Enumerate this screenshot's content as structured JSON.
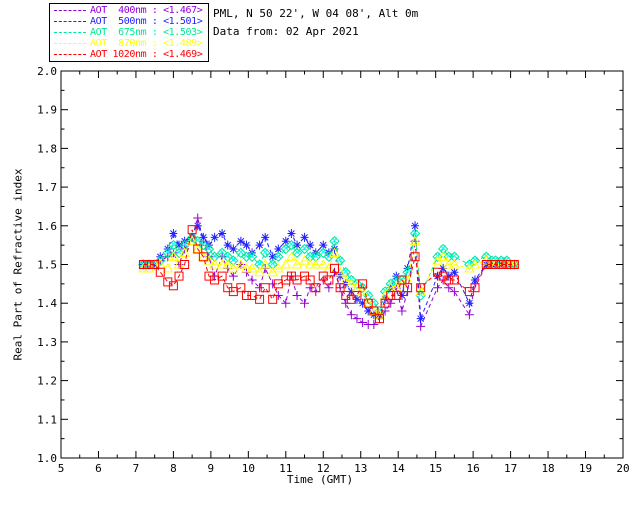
{
  "header": {
    "line1": "PML, N 50 22', W 04 08', Alt 0m",
    "line2": "Data from: 02 Apr 2021"
  },
  "legend": {
    "entries": [
      {
        "label": "AOT  400nm : <1.467>",
        "color": "#9400D3"
      },
      {
        "label": "AOT  500nm : <1.501>",
        "color": "#2222FF"
      },
      {
        "label": "AOT  675nm : <1.503>",
        "color": "#00E896"
      },
      {
        "label": "AOT  870nm : <1.489>",
        "color": "#FFFF00"
      },
      {
        "label": "AOT 1020nm : <1.469>",
        "color": "#FF0000"
      }
    ]
  },
  "chart_data": {
    "type": "line",
    "title": "",
    "xlabel": "Time (GMT)",
    "ylabel": "Real Part of Refractive index",
    "xlim": [
      5,
      20
    ],
    "ylim": [
      1.0,
      2.0
    ],
    "x_ticks": [
      5,
      6,
      7,
      8,
      9,
      10,
      11,
      12,
      13,
      14,
      15,
      16,
      17,
      18,
      19,
      20
    ],
    "y_ticks": [
      "1.0",
      "1.1",
      "1.2",
      "1.3",
      "1.4",
      "1.5",
      "1.6",
      "1.7",
      "1.8",
      "1.9",
      "2.0"
    ],
    "grid": false,
    "line_style": "dashed",
    "legend_position": "top-left",
    "x": [
      7.2,
      7.35,
      7.5,
      7.65,
      7.85,
      8.0,
      8.15,
      8.3,
      8.5,
      8.65,
      8.8,
      8.95,
      9.1,
      9.3,
      9.45,
      9.6,
      9.8,
      9.95,
      10.1,
      10.3,
      10.45,
      10.65,
      10.8,
      11.0,
      11.15,
      11.3,
      11.5,
      11.65,
      11.8,
      12.0,
      12.15,
      12.3,
      12.45,
      12.6,
      12.75,
      12.9,
      13.05,
      13.2,
      13.35,
      13.5,
      13.65,
      13.8,
      13.95,
      14.1,
      14.25,
      14.45,
      14.6,
      15.05,
      15.2,
      15.35,
      15.5,
      15.9,
      16.05,
      16.35,
      16.5,
      16.6,
      16.75,
      16.9,
      17.0,
      17.1
    ],
    "series": [
      {
        "name": "AOT 400nm",
        "mean": 1.467,
        "color": "#9400D3",
        "marker": "plus",
        "values": [
          1.5,
          1.5,
          1.5,
          1.51,
          1.52,
          1.53,
          1.5,
          1.54,
          1.57,
          1.62,
          1.56,
          1.52,
          1.47,
          1.52,
          1.49,
          1.47,
          1.5,
          1.48,
          1.46,
          1.44,
          1.49,
          1.45,
          1.42,
          1.4,
          1.47,
          1.42,
          1.4,
          1.44,
          1.43,
          1.46,
          1.44,
          1.48,
          1.44,
          1.4,
          1.37,
          1.36,
          1.35,
          1.345,
          1.345,
          1.36,
          1.38,
          1.4,
          1.44,
          1.38,
          1.43,
          1.56,
          1.34,
          1.44,
          1.46,
          1.44,
          1.43,
          1.37,
          1.45,
          1.5,
          1.5,
          1.5,
          1.5,
          1.5,
          1.5,
          1.5
        ]
      },
      {
        "name": "AOT 500nm",
        "mean": 1.501,
        "color": "#2222FF",
        "marker": "asterisk",
        "values": [
          1.5,
          1.5,
          1.5,
          1.52,
          1.54,
          1.58,
          1.55,
          1.56,
          1.57,
          1.6,
          1.57,
          1.55,
          1.57,
          1.58,
          1.55,
          1.54,
          1.56,
          1.55,
          1.53,
          1.55,
          1.57,
          1.52,
          1.54,
          1.56,
          1.58,
          1.55,
          1.57,
          1.55,
          1.53,
          1.55,
          1.53,
          1.54,
          1.47,
          1.45,
          1.43,
          1.41,
          1.4,
          1.38,
          1.37,
          1.37,
          1.41,
          1.44,
          1.47,
          1.42,
          1.49,
          1.6,
          1.36,
          1.47,
          1.49,
          1.47,
          1.48,
          1.4,
          1.46,
          1.5,
          1.5,
          1.5,
          1.5,
          1.5,
          1.5,
          1.5
        ]
      },
      {
        "name": "AOT 675nm",
        "mean": 1.503,
        "color": "#00E896",
        "marker": "diamond",
        "accent": "#00FFFF",
        "values": [
          1.5,
          1.5,
          1.5,
          1.51,
          1.53,
          1.55,
          1.53,
          1.55,
          1.57,
          1.56,
          1.55,
          1.54,
          1.52,
          1.53,
          1.52,
          1.51,
          1.53,
          1.52,
          1.52,
          1.5,
          1.53,
          1.5,
          1.52,
          1.54,
          1.55,
          1.53,
          1.54,
          1.52,
          1.52,
          1.53,
          1.52,
          1.56,
          1.51,
          1.48,
          1.46,
          1.45,
          1.44,
          1.42,
          1.4,
          1.38,
          1.43,
          1.45,
          1.46,
          1.46,
          1.48,
          1.58,
          1.42,
          1.52,
          1.54,
          1.52,
          1.52,
          1.5,
          1.51,
          1.52,
          1.51,
          1.51,
          1.51,
          1.51,
          1.5,
          1.5
        ]
      },
      {
        "name": "AOT 870nm",
        "mean": 1.489,
        "color": "#FFFF00",
        "marker": "triangle",
        "values": [
          1.49,
          1.49,
          1.5,
          1.5,
          1.49,
          1.52,
          1.5,
          1.53,
          1.56,
          1.54,
          1.52,
          1.51,
          1.5,
          1.5,
          1.5,
          1.49,
          1.5,
          1.49,
          1.49,
          1.48,
          1.5,
          1.48,
          1.49,
          1.5,
          1.52,
          1.5,
          1.51,
          1.5,
          1.5,
          1.5,
          1.49,
          1.53,
          1.48,
          1.46,
          1.45,
          1.44,
          1.43,
          1.4,
          1.38,
          1.37,
          1.42,
          1.44,
          1.44,
          1.45,
          1.46,
          1.56,
          1.43,
          1.51,
          1.52,
          1.5,
          1.5,
          1.49,
          1.5,
          1.51,
          1.5,
          1.5,
          1.5,
          1.5,
          1.5,
          1.5
        ]
      },
      {
        "name": "AOT 1020nm",
        "mean": 1.469,
        "color": "#FF0000",
        "marker": "square",
        "values": [
          1.5,
          1.5,
          1.5,
          1.48,
          1.455,
          1.445,
          1.47,
          1.5,
          1.59,
          1.54,
          1.52,
          1.47,
          1.46,
          1.47,
          1.44,
          1.43,
          1.44,
          1.42,
          1.42,
          1.41,
          1.44,
          1.41,
          1.45,
          1.46,
          1.47,
          1.46,
          1.47,
          1.46,
          1.44,
          1.47,
          1.46,
          1.49,
          1.44,
          1.42,
          1.41,
          1.42,
          1.45,
          1.4,
          1.38,
          1.36,
          1.4,
          1.42,
          1.42,
          1.46,
          1.44,
          1.52,
          1.44,
          1.48,
          1.47,
          1.46,
          1.46,
          1.43,
          1.44,
          1.5,
          1.5,
          1.5,
          1.5,
          1.5,
          1.5,
          1.5
        ]
      }
    ]
  }
}
